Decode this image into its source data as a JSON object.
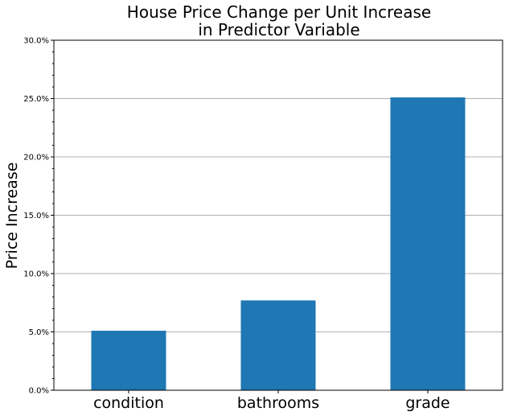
{
  "chart_data": {
    "type": "bar",
    "title_lines": [
      "House Price Change per Unit Increase",
      "in Predictor Variable"
    ],
    "xlabel": "",
    "ylabel": "Price Increase",
    "categories": [
      "condition",
      "bathrooms",
      "grade"
    ],
    "values": [
      5.1,
      7.7,
      25.1
    ],
    "ylim": [
      0,
      30
    ],
    "yticks": [
      0,
      5,
      10,
      15,
      20,
      25,
      30
    ],
    "ytick_labels": [
      "0.0%",
      "5.0%",
      "10.0%",
      "15.0%",
      "20.0%",
      "25.0%",
      "30.0%"
    ],
    "y_axis_format": "percent",
    "grid": "horizontal",
    "legend": "none",
    "bar_color": "#1f77b4",
    "grid_color": "#b0b0b0",
    "axis_color": "#000000"
  }
}
